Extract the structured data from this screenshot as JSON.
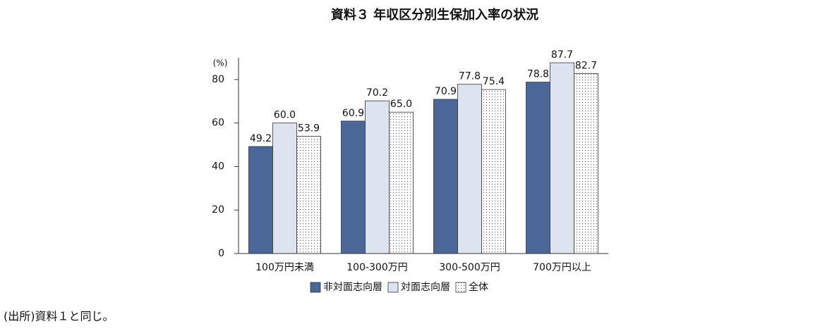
{
  "chart_data": {
    "type": "bar",
    "title": "資料３ 年収区分別生保加入率の状況",
    "y_label": "(%)",
    "categories": [
      "100万円未満",
      "100-300万円",
      "300-500万円",
      "700万円以上"
    ],
    "series": [
      {
        "name": "非対面志向層",
        "color": "#4a6797",
        "values": [
          49.2,
          60.9,
          70.9,
          78.8
        ],
        "value_labels": [
          "49.2",
          "60.9",
          "70.9",
          "78.8"
        ]
      },
      {
        "name": "対面志向層",
        "color": "#dde3ef",
        "values": [
          60.0,
          70.2,
          77.8,
          87.7
        ],
        "value_labels": [
          "60.0",
          "70.2",
          "77.8",
          "87.7"
        ]
      },
      {
        "name": "全体",
        "color": "#ffffff",
        "hatch": "dots",
        "values": [
          53.9,
          65.0,
          75.4,
          82.7
        ],
        "value_labels": [
          "53.9",
          "65.0",
          "75.4",
          "82.7"
        ]
      }
    ],
    "ylim": [
      0,
      90
    ],
    "yticks": [
      0,
      20,
      40,
      60,
      80
    ],
    "grid": false,
    "note": "(出所)資料１と同じ。"
  }
}
